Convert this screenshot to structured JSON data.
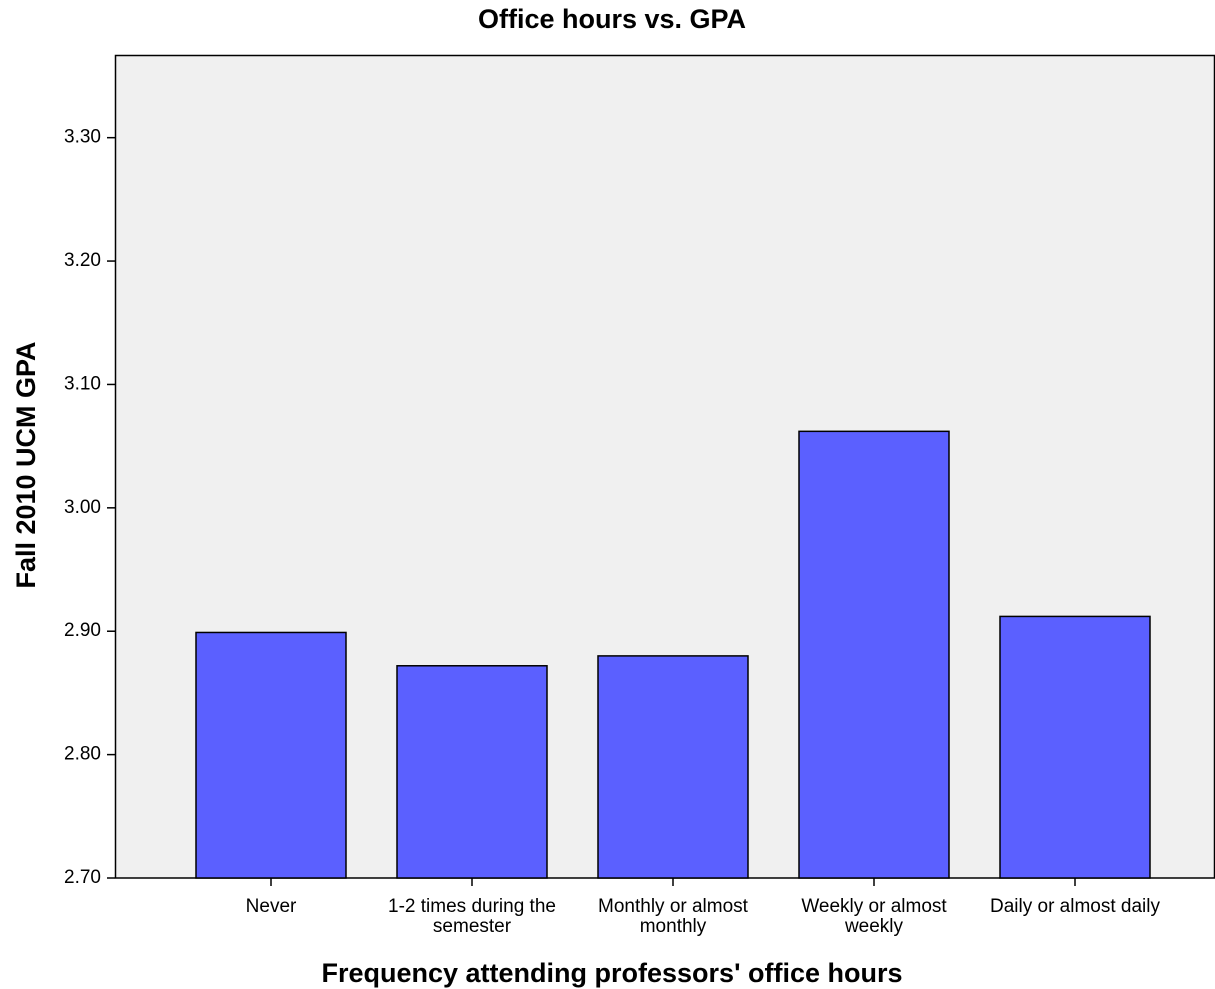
{
  "chart_data": {
    "type": "bar",
    "title": "Office hours vs. GPA",
    "x_label": "Frequency attending professors' office hours",
    "y_label": "Fall 2010 UCM GPA",
    "categories": [
      "Never",
      "1-2 times during the semester",
      "Monthly or almost monthly",
      "Weekly or almost weekly",
      "Daily or almost daily"
    ],
    "values": [
      2.899,
      2.872,
      2.88,
      3.062,
      2.912
    ],
    "color": "#5b60ff",
    "ylim": [
      2.7,
      3.367
    ],
    "yticks": [
      {
        "value": 2.7,
        "label": "2.70"
      },
      {
        "value": 2.8,
        "label": "2.80"
      },
      {
        "value": 2.9,
        "label": "2.90"
      },
      {
        "value": 3.0,
        "label": "3.00"
      },
      {
        "value": 3.1,
        "label": "3.10"
      },
      {
        "value": 3.2,
        "label": "3.20"
      },
      {
        "value": 3.3,
        "label": "3.30"
      }
    ]
  }
}
